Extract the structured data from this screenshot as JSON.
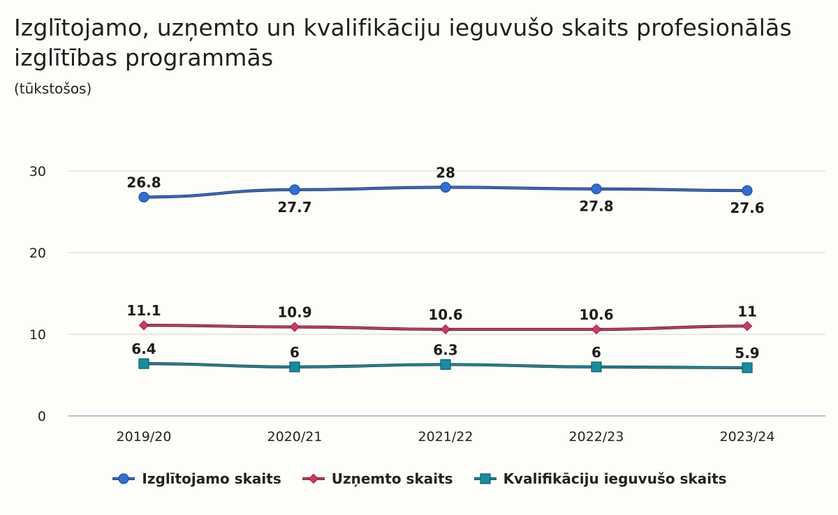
{
  "title": "Izglītojamo, uzņemto un kvalifikāciju ieguvušo skaits profesionālās izglītības programmās",
  "subtitle": "(tūkstošos)",
  "chart_data": {
    "type": "line",
    "categories": [
      "2019/20",
      "2020/21",
      "2021/22",
      "2022/23",
      "2023/24"
    ],
    "ylim": [
      0,
      30
    ],
    "yticks": [
      0,
      10,
      20,
      30
    ],
    "grid": true,
    "legend_position": "bottom",
    "series": [
      {
        "name": "Izglītojamo skaits",
        "values": [
          26.8,
          27.7,
          28,
          27.8,
          27.6
        ],
        "color": "#2e6fd6",
        "marker": "circle",
        "labels": [
          "26.8",
          "27.7",
          "28",
          "27.8",
          "27.6"
        ],
        "label_side": [
          "above",
          "below",
          "above",
          "below",
          "below"
        ]
      },
      {
        "name": "Uzņemto skaits",
        "values": [
          11.1,
          10.9,
          10.6,
          10.6,
          11
        ],
        "color": "#d3365a",
        "marker": "diamond",
        "labels": [
          "11.1",
          "10.9",
          "10.6",
          "10.6",
          "11"
        ],
        "label_side": [
          "above",
          "above",
          "above",
          "above",
          "above"
        ]
      },
      {
        "name": "Kvalifikāciju ieguvušo skaits",
        "values": [
          6.4,
          6,
          6.3,
          6,
          5.9
        ],
        "color": "#158ca0",
        "marker": "square",
        "labels": [
          "6.4",
          "6",
          "6.3",
          "6",
          "5.9"
        ],
        "label_side": [
          "above",
          "above",
          "above",
          "above",
          "above"
        ]
      }
    ]
  }
}
